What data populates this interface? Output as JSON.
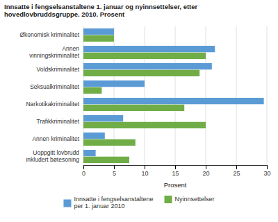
{
  "chart_data": {
    "type": "bar",
    "orientation": "horizontal",
    "title": "Innsatte i fengselsanstaltene 1. januar og nyinnsettelser, etter\nhovedlovbruddsgruppe. 2010. Prosent",
    "categories": [
      "Uoppgitt lovbrudd\ninkludert bøtesoning",
      "Annen kriminalitet",
      "Trafikkriminalitet",
      "Narkotikakriminalitet",
      "Seksualkriminalitet",
      "Voldskriminalitet",
      "Annen\nvinningskriminalitet",
      "Økonomisk kriminalitet"
    ],
    "series": [
      {
        "name": "Innsatte i fengselsanstaltene\nper 1. januar 2010",
        "color": "#5b9bd5",
        "values": [
          2,
          3.5,
          6.5,
          29.5,
          10,
          21,
          21.5,
          5
        ]
      },
      {
        "name": "Nyinnsettelser",
        "color": "#70ad47",
        "values": [
          7.5,
          8.5,
          20,
          16.5,
          3,
          19,
          20,
          5
        ]
      }
    ],
    "xlabel": "Prosent",
    "xlim": [
      0,
      30
    ],
    "xticks": [
      0,
      5,
      10,
      15,
      20,
      25,
      30
    ],
    "grid": true,
    "legend": "bottom"
  }
}
